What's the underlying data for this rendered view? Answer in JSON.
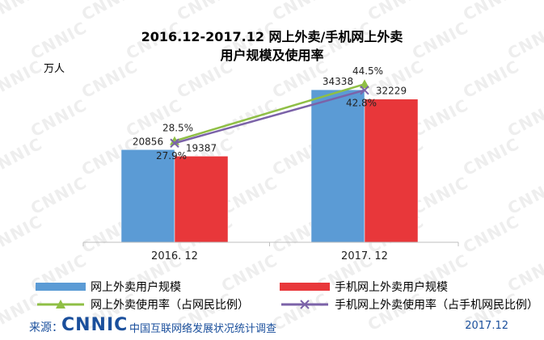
{
  "watermark_text": "CNNIC",
  "title": {
    "line1": "2016.12-2017.12 网上外卖/手机网上外卖",
    "line2": "用户规模及使用率"
  },
  "unit": "万人",
  "chart_data": {
    "type": "bar",
    "categories": [
      "2016. 12",
      "2017. 12"
    ],
    "series": [
      {
        "name": "网上外卖用户规模",
        "type": "bar",
        "color": "#5b9bd5",
        "values": [
          20856,
          34338
        ]
      },
      {
        "name": "手机网上外卖用户规模",
        "type": "bar",
        "color": "#e8373a",
        "values": [
          19387,
          32229
        ]
      }
    ],
    "line_series": [
      {
        "name": "网上外卖使用率（占网民比例）",
        "type": "line",
        "marker": "triangle",
        "color": "#8fbf45",
        "values": [
          28.5,
          44.5
        ],
        "labels": [
          "28.5%",
          "44.5%"
        ]
      },
      {
        "name": "手机网上外卖使用率（占手机网民比例）",
        "type": "line",
        "marker": "x",
        "color": "#7b62a8",
        "values": [
          27.9,
          42.8
        ],
        "labels": [
          "27.9%",
          "42.8%"
        ]
      }
    ],
    "ylabel": "万人",
    "ylim": [
      0,
      40000
    ],
    "rate_ylim": [
      0,
      50
    ],
    "grid": false,
    "legend": "bottom"
  },
  "footer": {
    "source_label": "来源：",
    "source_logo": "CNNIC",
    "source_org": "中国互联网络发展状况统计调查",
    "date": "2017.12"
  }
}
